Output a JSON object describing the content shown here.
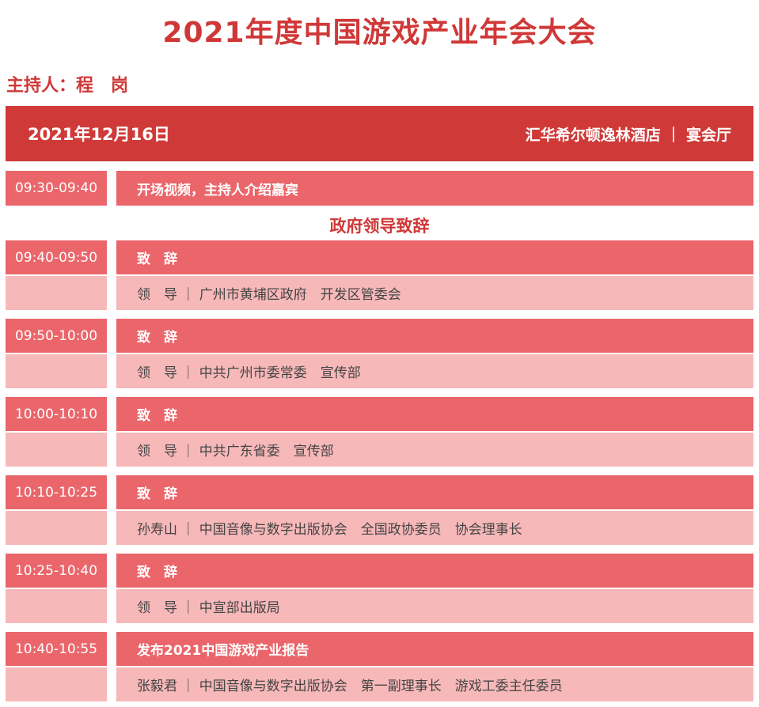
{
  "title": "2021年度中国游戏产业年会大会",
  "host": "主持人：程　岗",
  "header": {
    "date": "2021年12月16日",
    "venue": "汇华希尔顿逸林酒店 ｜ 宴会厅"
  },
  "opening": {
    "time": "09:30-09:40",
    "title": "开场视频，主持人介绍嘉宾"
  },
  "section": "政府领导致辞",
  "items": [
    {
      "time": "09:40-09:50",
      "title": "致　辞",
      "detail": "领　导 ｜ 广州市黄埔区政府　开发区管委会"
    },
    {
      "time": "09:50-10:00",
      "title": "致　辞",
      "detail": "领　导 ｜ 中共广州市委常委　宣传部"
    },
    {
      "time": "10:00-10:10",
      "title": "致　辞",
      "detail": "领　导 ｜ 中共广东省委　宣传部"
    },
    {
      "time": "10:10-10:25",
      "title": "致　辞",
      "detail": "孙寿山 ｜ 中国音像与数字出版协会　全国政协委员　协会理事长"
    },
    {
      "time": "10:25-10:40",
      "title": "致　辞",
      "detail": "领　导 ｜ 中宣部出版局"
    },
    {
      "time": "10:40-10:55",
      "title": "发布2021中国游戏产业报告",
      "detail": "张毅君 ｜ 中国音像与数字出版协会　第一副理事长　游戏工委主任委员"
    }
  ],
  "colors": {
    "header": "#cf3a38",
    "row_dark": "#ea666b",
    "row_light": "#f7b8b9",
    "title": "#d03838"
  }
}
